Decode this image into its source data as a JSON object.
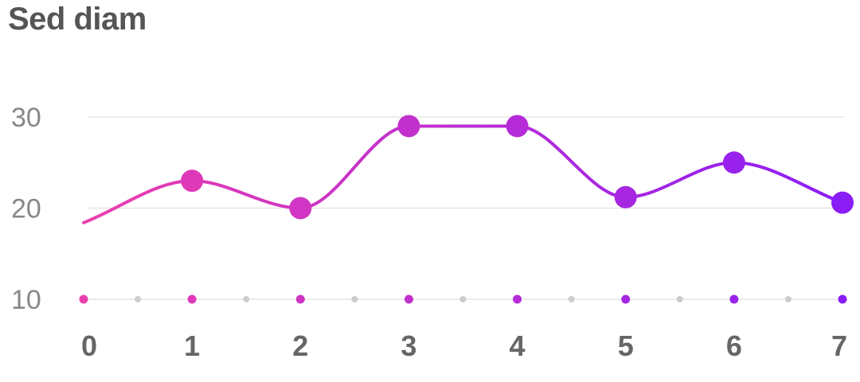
{
  "chart_data": {
    "type": "line",
    "title": "Sed diam",
    "xlabel": "",
    "ylabel": "",
    "x": [
      0,
      1,
      2,
      3,
      4,
      5,
      6,
      7
    ],
    "x_tick_labels": [
      "0",
      "1",
      "2",
      "3",
      "4",
      "5",
      "6",
      "7"
    ],
    "y_tick_labels": [
      "30",
      "20",
      "10"
    ],
    "ylim": [
      10,
      30
    ],
    "series": [
      {
        "values": [
          18.4,
          23.0,
          20.0,
          29.0,
          29.0,
          21.2,
          25.0,
          20.6
        ],
        "first_point_marker": false,
        "line_style": "smooth"
      }
    ],
    "grid": "horizontal",
    "colors": {
      "gradient_start": "#ec3fae",
      "gradient_end": "#8a1cf6",
      "grid": "#e6e6e6",
      "minor_dot": "#cccccc",
      "title": "#555555",
      "tick": "#666666"
    }
  }
}
